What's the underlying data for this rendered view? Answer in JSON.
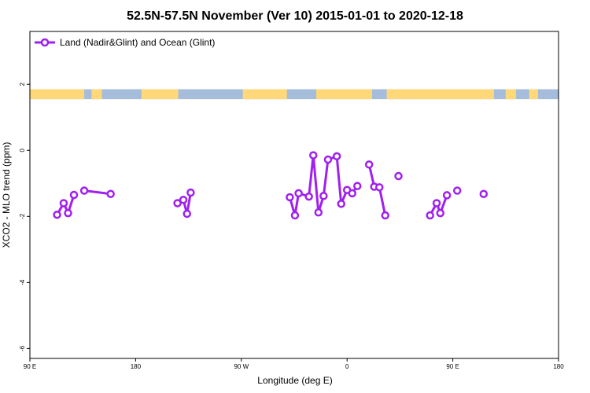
{
  "chart_data": {
    "type": "line",
    "title": "52.5N-57.5N November (Ver 10)   2015-01-01 to 2020-12-18",
    "xlabel": "Longitude (deg E)",
    "ylabel": "XCO2 - MLO trend (ppm)",
    "xlim": [
      -180,
      180
    ],
    "ylim": [
      -6.3,
      3.6
    ],
    "x_ticks": [
      {
        "value": -180,
        "label": "90 E"
      },
      {
        "value": -108,
        "label": "180"
      },
      {
        "value": -36,
        "label": "90 W"
      },
      {
        "value": 36,
        "label": "0"
      },
      {
        "value": 108,
        "label": "90 E"
      },
      {
        "value": 180,
        "label": "180"
      }
    ],
    "y_ticks": [
      {
        "value": 2,
        "label": "2"
      },
      {
        "value": 0,
        "label": "0"
      },
      {
        "value": -2,
        "label": "-2"
      },
      {
        "value": -4,
        "label": "-4"
      },
      {
        "value": -6,
        "label": "-6"
      }
    ],
    "legend": {
      "position": "top-left",
      "label": "Land (Nadir&Glint) and Ocean (Glint)"
    },
    "series_color": "#a020f0",
    "land_ocean_band": {
      "y_range": [
        1.55,
        1.85
      ],
      "land_color": "#ffd87a",
      "ocean_color": "#a5bddb",
      "land_segments": [
        [
          -180,
          -143
        ],
        [
          -138,
          -131
        ],
        [
          -104,
          -79
        ],
        [
          -35,
          -5
        ],
        [
          15,
          53
        ],
        [
          63,
          136
        ],
        [
          144,
          151
        ],
        [
          160,
          166
        ]
      ]
    },
    "segments": [
      [
        [
          -161.5,
          -1.95
        ],
        [
          -157,
          -1.6
        ],
        [
          -154,
          -1.9
        ],
        [
          -150,
          -1.35
        ]
      ],
      [
        [
          -143,
          -1.22
        ],
        [
          -125,
          -1.32
        ]
      ],
      [
        [
          -79.5,
          -1.6
        ],
        [
          -75.5,
          -1.5
        ],
        [
          -73,
          -1.92
        ],
        [
          -70.5,
          -1.28
        ]
      ],
      [
        [
          -3,
          -1.42
        ],
        [
          0.5,
          -1.97
        ],
        [
          3,
          -1.3
        ],
        [
          10,
          -1.4
        ],
        [
          13,
          -0.15
        ],
        [
          16.5,
          -1.88
        ],
        [
          20,
          -1.38
        ],
        [
          23,
          -0.28
        ],
        [
          29,
          -0.18
        ],
        [
          32,
          -1.62
        ],
        [
          36,
          -1.2
        ],
        [
          39.5,
          -1.3
        ],
        [
          43,
          -1.08
        ]
      ],
      [
        [
          51,
          -0.43
        ],
        [
          54.5,
          -1.1
        ],
        [
          58,
          -1.12
        ],
        [
          62,
          -1.97
        ]
      ],
      [
        [
          71,
          -0.78
        ]
      ],
      [
        [
          92.5,
          -1.97
        ],
        [
          97,
          -1.6
        ],
        [
          99.5,
          -1.9
        ],
        [
          104,
          -1.36
        ]
      ],
      [
        [
          111,
          -1.22
        ]
      ],
      [
        [
          129,
          -1.32
        ]
      ]
    ]
  }
}
